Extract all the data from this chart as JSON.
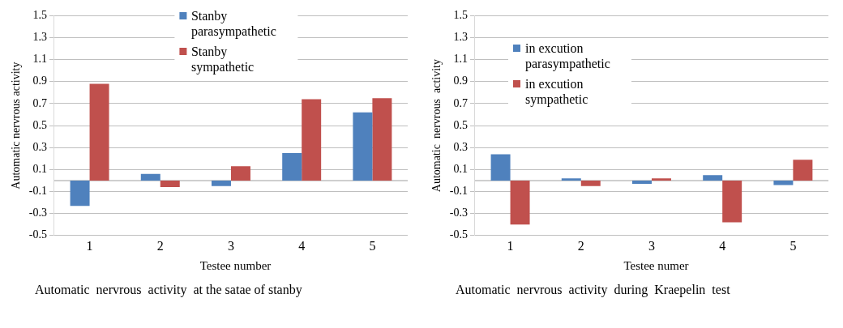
{
  "chart_data": [
    {
      "type": "bar",
      "categories": [
        "1",
        "2",
        "3",
        "4",
        "5"
      ],
      "ylabel": "Automatic nervrous activity",
      "xlabel": "Testee number",
      "ylim": [
        -0.5,
        1.5
      ],
      "yticks": [
        -0.5,
        -0.3,
        -0.1,
        0.1,
        0.3,
        0.5,
        0.7,
        0.9,
        1.1,
        1.3,
        1.5
      ],
      "grid": "y",
      "legend": "top",
      "annotations": [
        "Automatic  nervrous  activity  at the satae of stanby"
      ],
      "series": [
        {
          "name": "Stanby parasympathetic",
          "color": "#4f81bd",
          "values": [
            -0.23,
            0.06,
            -0.05,
            0.25,
            0.62
          ]
        },
        {
          "name": "Stanby sympathetic",
          "color": "#c0504d",
          "values": [
            0.88,
            -0.06,
            0.13,
            0.74,
            0.75
          ]
        }
      ]
    },
    {
      "type": "bar",
      "categories": [
        "1",
        "2",
        "3",
        "4",
        "5"
      ],
      "ylabel": "Automatic  nervrous  activity",
      "xlabel": "Testee numer",
      "ylim": [
        -0.5,
        1.5
      ],
      "yticks": [
        -0.5,
        -0.3,
        -0.1,
        0.1,
        0.3,
        0.5,
        0.7,
        0.9,
        1.1,
        1.3,
        1.5
      ],
      "grid": "y",
      "legend": "top left",
      "annotations": [
        "Automatic  nervrous  activity  during  Kraepelin  test"
      ],
      "series": [
        {
          "name": "in excution parasympathetic",
          "color": "#4f81bd",
          "values": [
            0.24,
            0.02,
            -0.03,
            0.05,
            -0.04
          ]
        },
        {
          "name": "in excution sympathetic",
          "color": "#c0504d",
          "values": [
            -0.4,
            -0.05,
            0.02,
            -0.38,
            0.19
          ]
        }
      ]
    }
  ]
}
